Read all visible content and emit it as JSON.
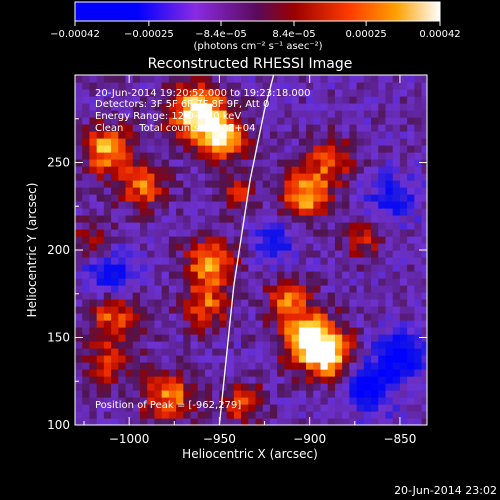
{
  "chart_data": {
    "type": "heatmap",
    "title": "Reconstructed RHESSI Image",
    "xlabel": "Heliocentric X (arcsec)",
    "ylabel": "Heliocentric Y (arcsec)",
    "xlim": [
      -1030,
      -835
    ],
    "ylim": [
      100,
      300
    ],
    "xticks": [
      -1000,
      -950,
      -900,
      -850
    ],
    "xtick_labels": [
      "−1000",
      "−950",
      "−900",
      "−850"
    ],
    "yticks": [
      100,
      150,
      200,
      250
    ],
    "ytick_labels": [
      "100",
      "150",
      "200",
      "250"
    ],
    "colorbar": {
      "range": [
        -0.00042,
        0.00042
      ],
      "ticks": [
        -0.00042,
        -0.00025,
        -8.4e-05,
        8.4e-05,
        0.00025,
        0.00042
      ],
      "tick_labels": [
        "−0.00042",
        "−0.00025",
        "−8.4e−05",
        "8.4e−05",
        "0.00025",
        "0.00042"
      ],
      "unit_label": "(photons cm⁻² s⁻¹ asec⁻²)"
    },
    "annotations": {
      "time_range": "20-Jun-2014 19:20:52.000 to 19:23:18.000",
      "detectors": "Detectors: 3F 5F 6F 7F 8F 9F, Att 0",
      "energy": "Energy Range: 12.0-25.0 keV",
      "clean": "Clean     Total counts: 1.60E+04",
      "peak": "Position of Peak = [-962,279]"
    },
    "footer_timestamp": "20-Jun-2014 23:02",
    "grid": false,
    "limb_curve_x": [
      [
        -920,
        300
      ],
      [
        -925,
        280
      ],
      [
        -929,
        260
      ],
      [
        -933,
        240
      ],
      [
        -936,
        220
      ],
      [
        -939,
        200
      ],
      [
        -942,
        180
      ],
      [
        -944,
        160
      ],
      [
        -946,
        140
      ],
      [
        -948,
        120
      ],
      [
        -950,
        100
      ]
    ],
    "sources": [
      {
        "x": -962,
        "y": 279,
        "sigma": 11,
        "amp": 1.0
      },
      {
        "x": -948,
        "y": 264,
        "sigma": 9,
        "amp": 0.85
      },
      {
        "x": -1012,
        "y": 258,
        "sigma": 10,
        "amp": 0.75
      },
      {
        "x": -992,
        "y": 236,
        "sigma": 9,
        "amp": 0.6
      },
      {
        "x": -902,
        "y": 232,
        "sigma": 10,
        "amp": 0.75
      },
      {
        "x": -888,
        "y": 252,
        "sigma": 9,
        "amp": 0.55
      },
      {
        "x": -955,
        "y": 192,
        "sigma": 10,
        "amp": 0.7
      },
      {
        "x": -957,
        "y": 168,
        "sigma": 9,
        "amp": 0.55
      },
      {
        "x": -1008,
        "y": 163,
        "sigma": 11,
        "amp": 0.6
      },
      {
        "x": -1012,
        "y": 136,
        "sigma": 9,
        "amp": 0.45
      },
      {
        "x": -912,
        "y": 172,
        "sigma": 8,
        "amp": 0.55
      },
      {
        "x": -900,
        "y": 150,
        "sigma": 11,
        "amp": 0.95
      },
      {
        "x": -888,
        "y": 138,
        "sigma": 9,
        "amp": 0.8
      },
      {
        "x": -978,
        "y": 116,
        "sigma": 10,
        "amp": 0.65
      },
      {
        "x": -937,
        "y": 112,
        "sigma": 8,
        "amp": 0.55
      },
      {
        "x": -870,
        "y": 206,
        "sigma": 8,
        "amp": 0.4
      },
      {
        "x": -940,
        "y": 232,
        "sigma": 7,
        "amp": 0.45
      },
      {
        "x": -878,
        "y": 112,
        "sigma": 7,
        "amp": 0.35
      },
      {
        "x": -1020,
        "y": 206,
        "sigma": 8,
        "amp": 0.35
      }
    ],
    "negative_regions": [
      {
        "x": -1010,
        "y": 185,
        "sigma": 10,
        "amp": 0.55
      },
      {
        "x": -870,
        "y": 120,
        "sigma": 10,
        "amp": 0.8
      },
      {
        "x": -850,
        "y": 140,
        "sigma": 9,
        "amp": 0.7
      },
      {
        "x": -920,
        "y": 205,
        "sigma": 8,
        "amp": 0.45
      },
      {
        "x": -855,
        "y": 230,
        "sigma": 10,
        "amp": 0.4
      }
    ]
  }
}
